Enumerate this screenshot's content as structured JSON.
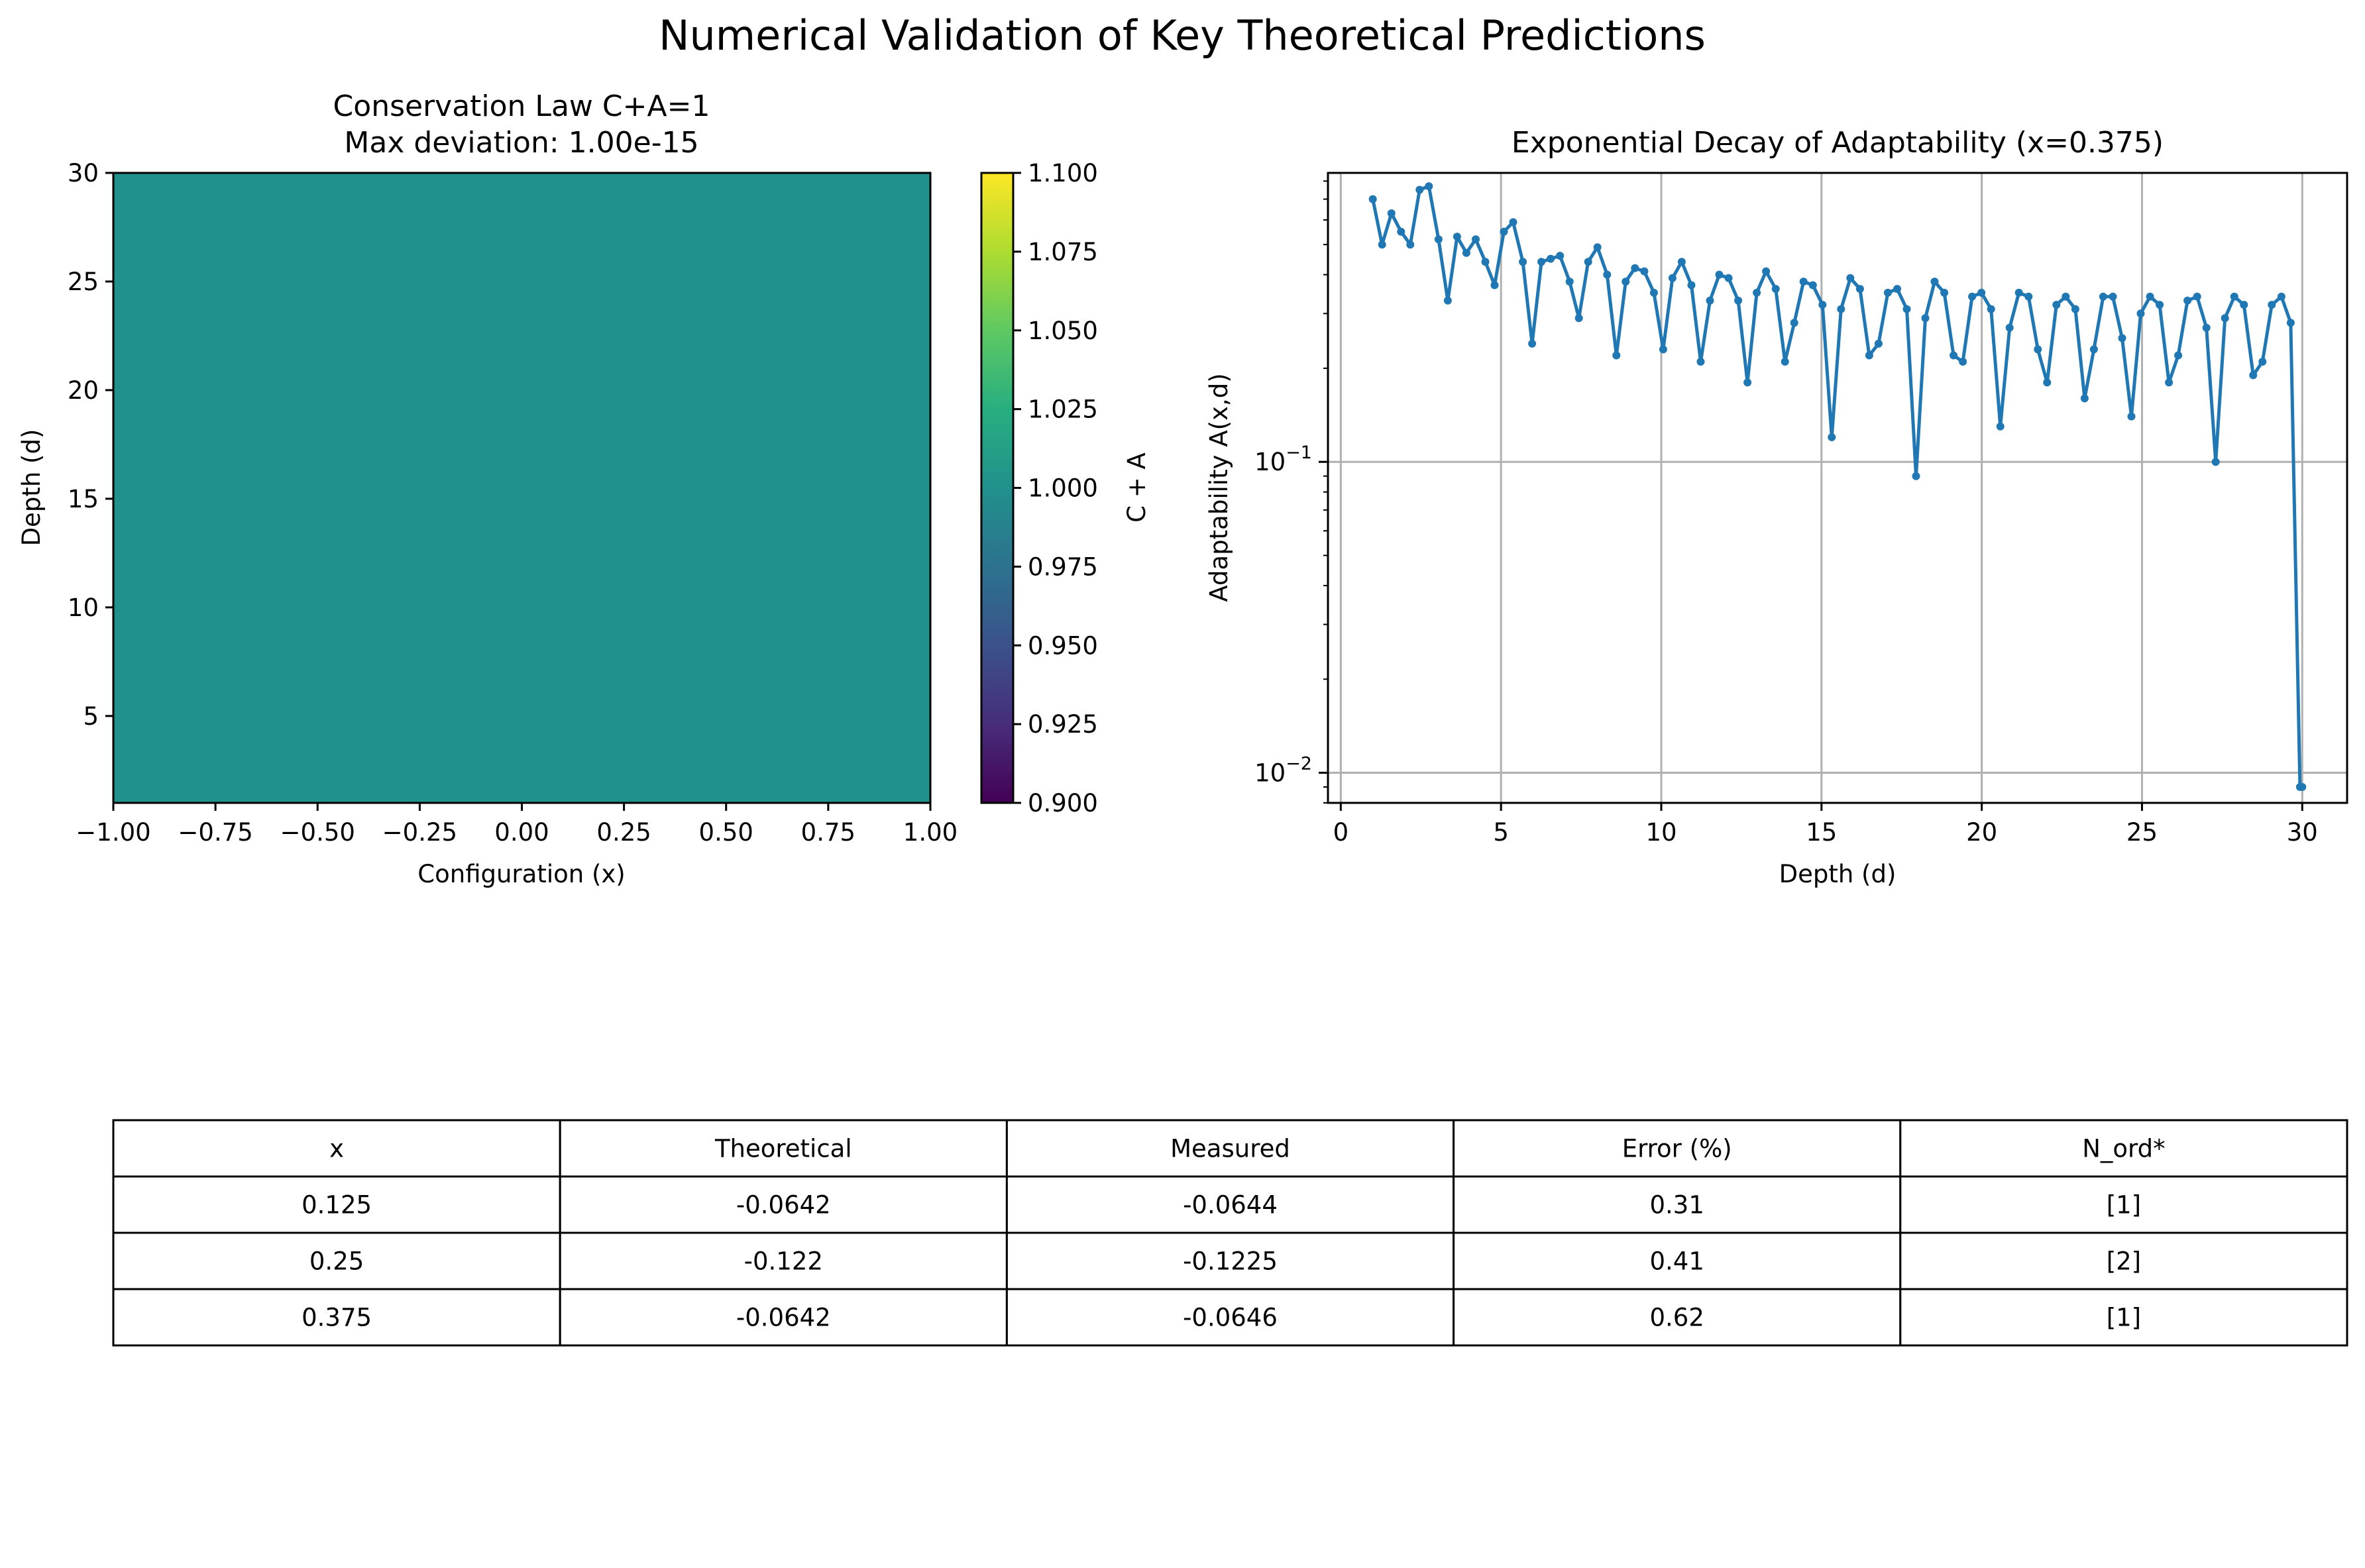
{
  "figure": {
    "suptitle": "Numerical Validation of Key Theoretical Predictions"
  },
  "chart_data": [
    {
      "type": "heatmap",
      "title_line1": "Conservation Law C+A=1",
      "title_line2": "Max deviation: 1.00e-15",
      "xlabel": "Configuration (x)",
      "ylabel": "Depth (d)",
      "xlim": [
        -1.0,
        1.0
      ],
      "ylim": [
        1,
        30
      ],
      "xticks": [
        "−1.00",
        "−0.75",
        "−0.50",
        "−0.25",
        "0.00",
        "0.25",
        "0.50",
        "0.75",
        "1.00"
      ],
      "yticks": [
        "5",
        "10",
        "15",
        "20",
        "25",
        "30"
      ],
      "value": 1.0,
      "fill_color": "#21918c",
      "colorbar": {
        "label": "C + A",
        "range": [
          0.9,
          1.1
        ],
        "ticks": [
          "0.900",
          "0.925",
          "0.950",
          "0.975",
          "1.000",
          "1.025",
          "1.050",
          "1.075",
          "1.100"
        ],
        "colormap": "viridis"
      }
    },
    {
      "type": "line",
      "title": "Exponential Decay of Adaptability (x=0.375)",
      "xlabel": "Depth (d)",
      "ylabel": "Adaptability A(x,d)",
      "xlim": [
        -0.4,
        31.4
      ],
      "ylim": [
        0.008,
        0.85
      ],
      "yscale": "log",
      "grid": true,
      "xticks": [
        "0",
        "5",
        "10",
        "15",
        "20",
        "25",
        "30"
      ],
      "yticks": [
        "10",
        "10",
        "10"
      ],
      "yticks_exp": [
        "−1",
        "−2",
        ""
      ],
      "line_color": "#1f77b4",
      "series": [
        {
          "x": [
            1.0,
            1.29,
            1.58,
            1.88,
            2.17,
            2.46,
            2.75,
            3.05,
            3.34,
            3.63,
            3.92,
            4.21,
            4.51,
            4.8,
            5.09,
            5.38,
            5.68,
            5.97,
            6.26,
            6.55,
            6.84,
            7.14,
            7.43,
            7.72,
            8.01,
            8.31,
            8.6,
            8.89,
            9.18,
            9.47,
            9.77,
            10.06,
            10.35,
            10.64,
            10.94,
            11.23,
            11.52,
            11.81,
            12.1,
            12.4,
            12.69,
            12.98,
            13.27,
            13.57,
            13.86,
            14.15,
            14.44,
            14.73,
            15.03,
            15.32,
            15.61,
            15.9,
            16.2,
            16.49,
            16.78,
            17.07,
            17.36,
            17.66,
            17.95,
            18.24,
            18.53,
            18.83,
            19.12,
            19.41,
            19.7,
            19.99,
            20.29,
            20.58,
            20.87,
            21.16,
            21.46,
            21.75,
            22.04,
            22.33,
            22.62,
            22.92,
            23.21,
            23.5,
            23.79,
            24.09,
            24.38,
            24.67,
            24.96,
            25.25,
            25.55,
            25.84,
            26.13,
            26.42,
            26.72,
            27.01,
            27.3,
            27.59,
            27.88,
            28.18,
            28.47,
            28.76,
            29.05,
            29.35,
            29.64,
            29.93,
            30.0
          ],
          "y": [
            0.7,
            0.5,
            0.63,
            0.55,
            0.5,
            0.75,
            0.77,
            0.52,
            0.33,
            0.53,
            0.47,
            0.52,
            0.44,
            0.37,
            0.55,
            0.59,
            0.44,
            0.24,
            0.44,
            0.45,
            0.46,
            0.38,
            0.29,
            0.44,
            0.49,
            0.4,
            0.22,
            0.38,
            0.42,
            0.41,
            0.35,
            0.23,
            0.39,
            0.44,
            0.37,
            0.21,
            0.33,
            0.4,
            0.39,
            0.33,
            0.18,
            0.35,
            0.41,
            0.36,
            0.21,
            0.28,
            0.38,
            0.37,
            0.32,
            0.12,
            0.31,
            0.39,
            0.36,
            0.22,
            0.24,
            0.35,
            0.36,
            0.31,
            0.09,
            0.29,
            0.38,
            0.35,
            0.22,
            0.21,
            0.34,
            0.35,
            0.31,
            0.13,
            0.27,
            0.35,
            0.34,
            0.23,
            0.18,
            0.32,
            0.34,
            0.31,
            0.16,
            0.23,
            0.34,
            0.34,
            0.25,
            0.14,
            0.3,
            0.34,
            0.32,
            0.18,
            0.22,
            0.33,
            0.34,
            0.27,
            0.1,
            0.29,
            0.34,
            0.32,
            0.19,
            0.21,
            0.32,
            0.34,
            0.28,
            0.009,
            0.009
          ]
        }
      ]
    },
    {
      "type": "table",
      "columns": [
        "x",
        "Theoretical",
        "Measured",
        "Error (%)",
        "N_ord*"
      ],
      "rows": [
        [
          "0.125",
          "-0.0642",
          "-0.0644",
          "0.31",
          "[1]"
        ],
        [
          "0.25",
          "-0.122",
          "-0.1225",
          "0.41",
          "[2]"
        ],
        [
          "0.375",
          "-0.0642",
          "-0.0646",
          "0.62",
          "[1]"
        ]
      ]
    }
  ]
}
